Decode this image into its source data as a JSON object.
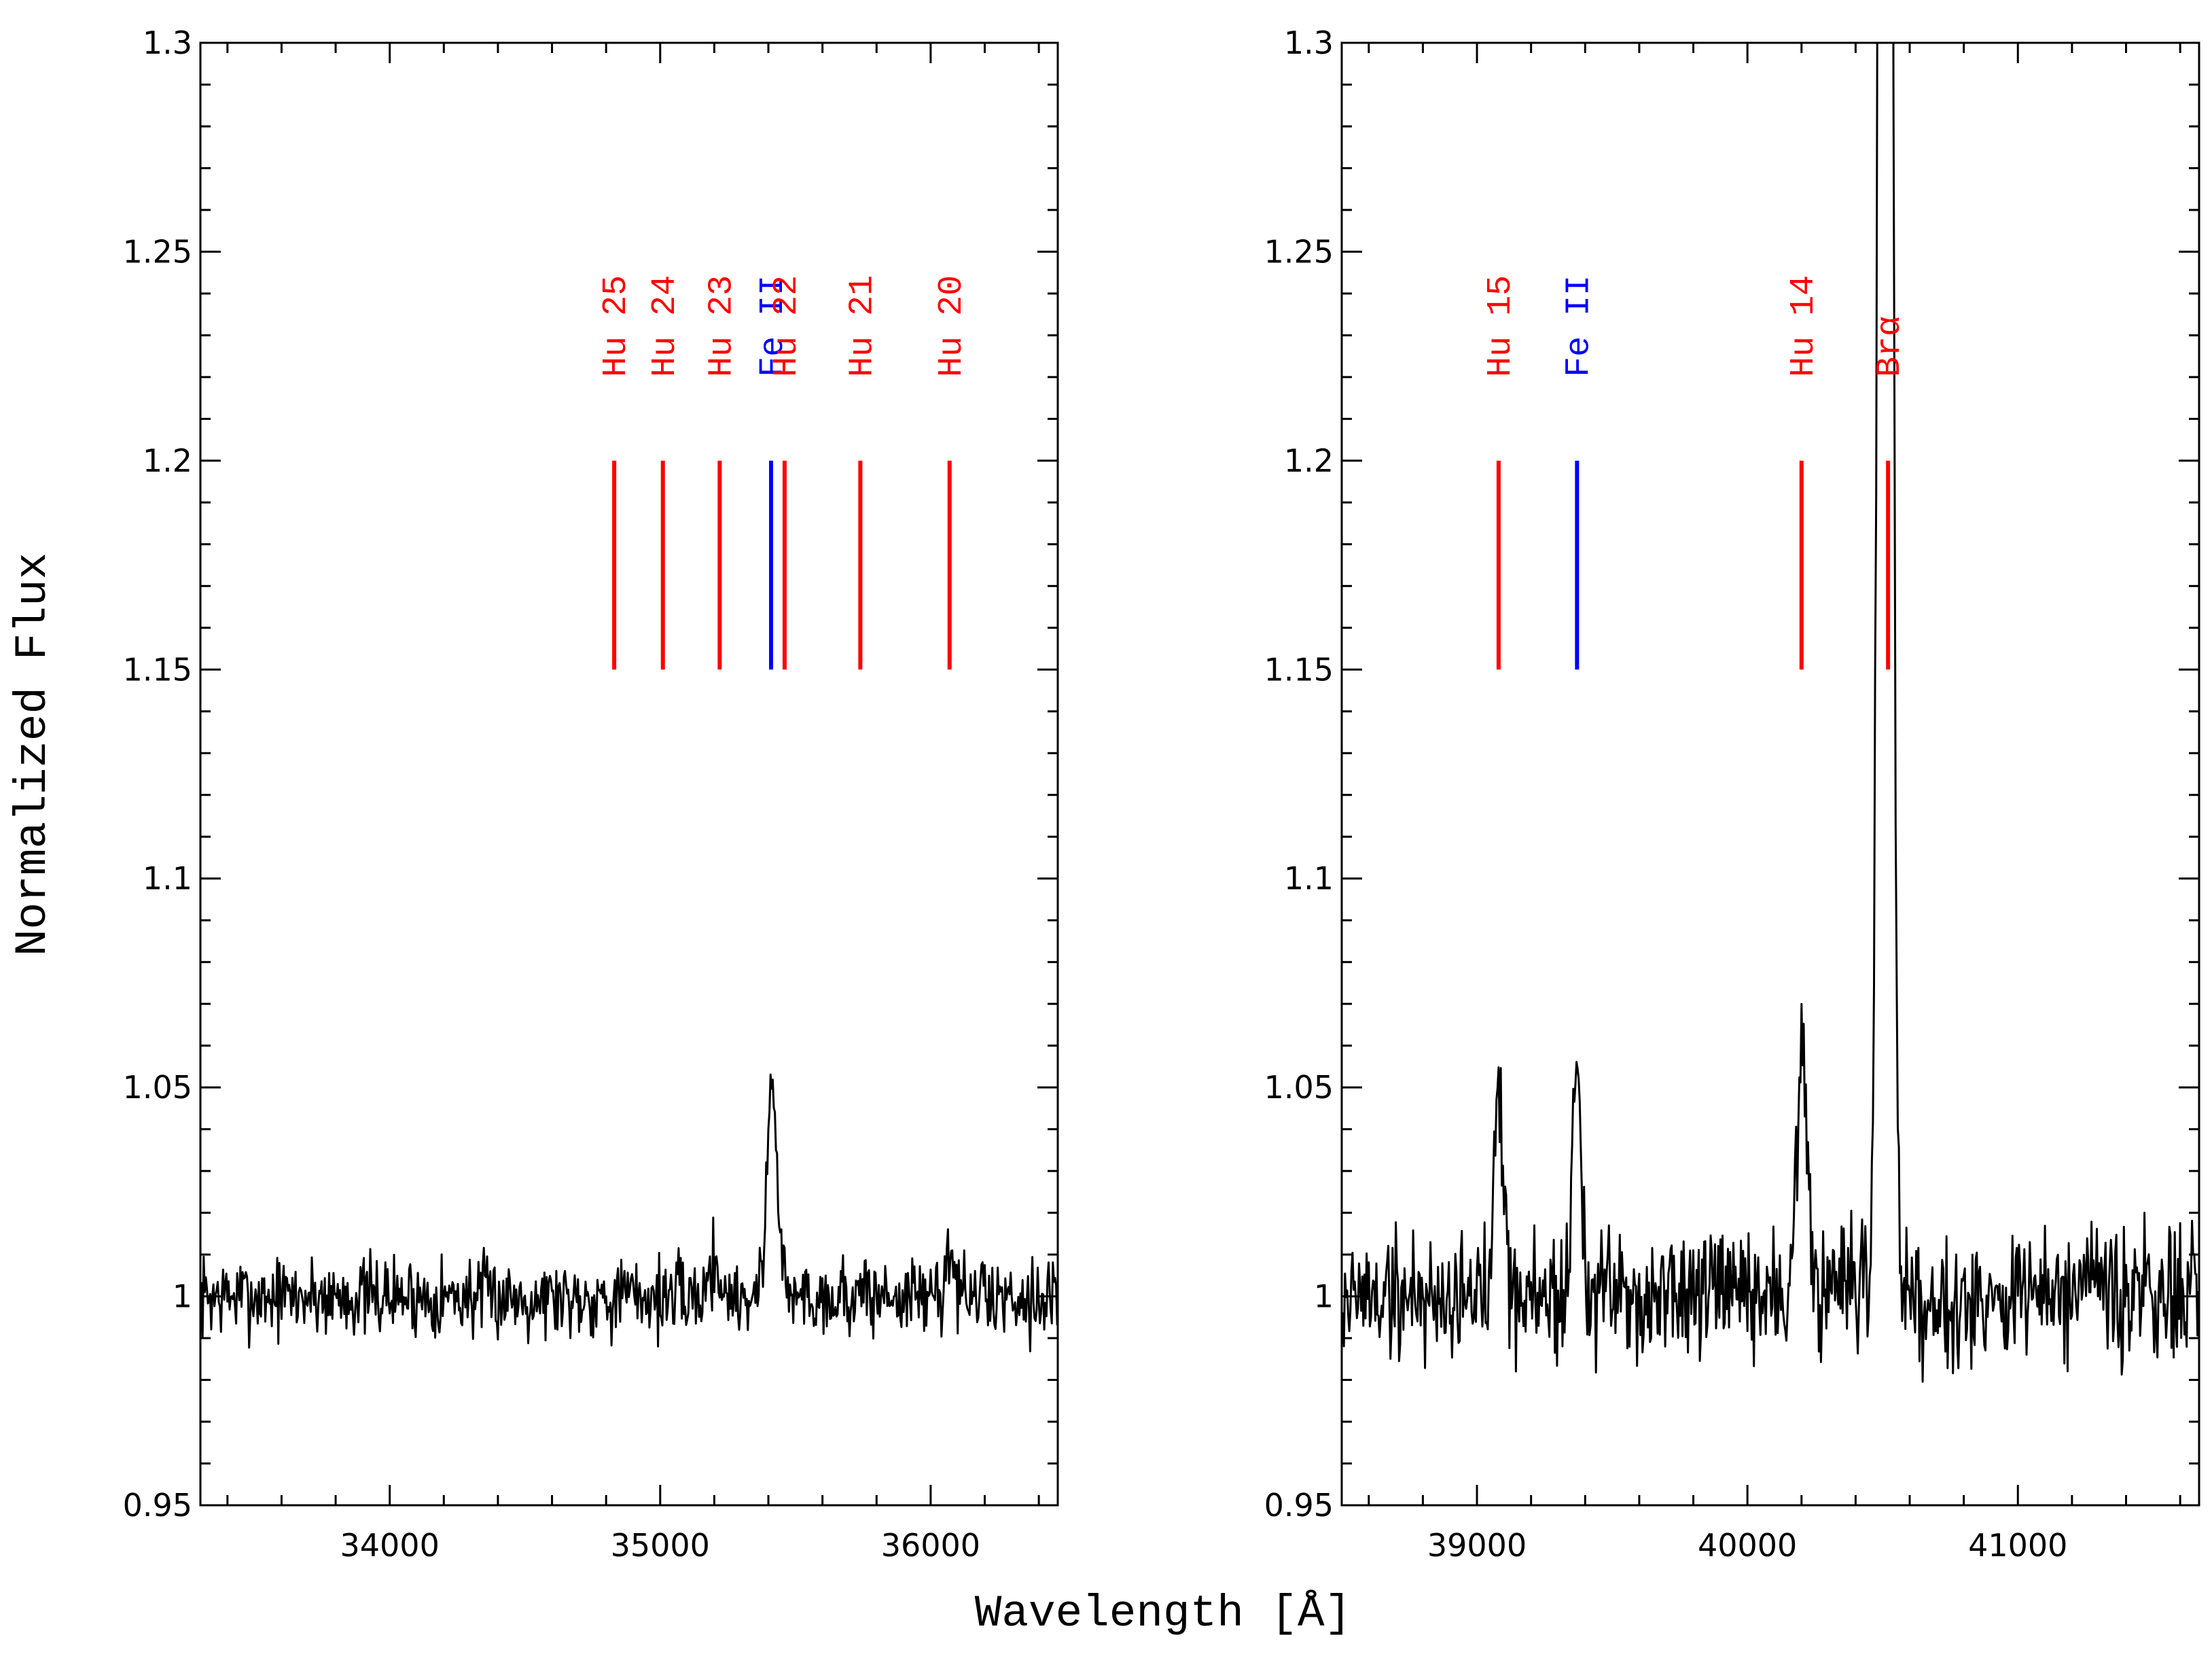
{
  "figure": {
    "xlabel": "Wavelength [Å]",
    "ylabel": "Normalized Flux"
  },
  "chart_data": [
    {
      "type": "line",
      "panel": "left",
      "xlim": [
        33300,
        36470
      ],
      "ylim": [
        0.95,
        1.3
      ],
      "x_ticks": [
        34000,
        35000,
        36000
      ],
      "x_tick_labels": [
        "34000",
        "35000",
        "36000"
      ],
      "y_ticks": [
        0.95,
        1.0,
        1.05,
        1.1,
        1.15,
        1.2,
        1.25,
        1.3
      ],
      "y_tick_labels": [
        "0.95",
        "1",
        "1.05",
        "1.1",
        "1.15",
        "1.2",
        "1.25",
        "1.3"
      ],
      "series": [
        {
          "name": "spectrum",
          "continuum": 1.0,
          "noise": 0.006,
          "peaks": [
            {
              "center": 35415,
              "amplitude": 0.05,
              "width": 20
            },
            {
              "center": 36070,
              "amplitude": 0.012,
              "width": 15
            },
            {
              "center": 35200,
              "amplitude": 0.008,
              "width": 20
            }
          ]
        }
      ],
      "markers": [
        {
          "label": "Hu 25",
          "wavelength": 34830,
          "y0": 1.15,
          "y1": 1.2,
          "color": "#ff0000"
        },
        {
          "label": "Hu 24",
          "wavelength": 35010,
          "y0": 1.15,
          "y1": 1.2,
          "color": "#ff0000"
        },
        {
          "label": "Hu 23",
          "wavelength": 35220,
          "y0": 1.15,
          "y1": 1.2,
          "color": "#ff0000"
        },
        {
          "label": "Fe II",
          "wavelength": 35410,
          "y0": 1.15,
          "y1": 1.2,
          "color": "#0000ff"
        },
        {
          "label": "Hu 22",
          "wavelength": 35460,
          "y0": 1.15,
          "y1": 1.2,
          "color": "#ff0000"
        },
        {
          "label": "Hu 21",
          "wavelength": 35740,
          "y0": 1.15,
          "y1": 1.2,
          "color": "#ff0000"
        },
        {
          "label": "Hu 20",
          "wavelength": 36070,
          "y0": 1.15,
          "y1": 1.2,
          "color": "#ff0000"
        }
      ]
    },
    {
      "type": "line",
      "panel": "right",
      "xlim": [
        38500,
        41670
      ],
      "ylim": [
        0.95,
        1.3
      ],
      "x_ticks": [
        39000,
        40000,
        41000
      ],
      "x_tick_labels": [
        "39000",
        "40000",
        "41000"
      ],
      "y_ticks": [
        0.95,
        1.0,
        1.05,
        1.1,
        1.15,
        1.2,
        1.25,
        1.3
      ],
      "y_tick_labels": [
        "0.95",
        "1",
        "1.05",
        "1.1",
        "1.15",
        "1.2",
        "1.25",
        "1.3"
      ],
      "series": [
        {
          "name": "spectrum",
          "continuum": 1.0,
          "noise": 0.01,
          "peaks": [
            {
              "center": 40510,
              "amplitude": 1.2,
              "width": 18
            },
            {
              "center": 39080,
              "amplitude": 0.055,
              "width": 18
            },
            {
              "center": 39370,
              "amplitude": 0.06,
              "width": 15
            },
            {
              "center": 40200,
              "amplitude": 0.055,
              "width": 20
            }
          ]
        }
      ],
      "markers": [
        {
          "label": "Hu 15",
          "wavelength": 39080,
          "y0": 1.15,
          "y1": 1.2,
          "color": "#ff0000"
        },
        {
          "label": "Fe II",
          "wavelength": 39370,
          "y0": 1.15,
          "y1": 1.2,
          "color": "#0000ff"
        },
        {
          "label": "Hu 14",
          "wavelength": 40200,
          "y0": 1.15,
          "y1": 1.2,
          "color": "#ff0000"
        },
        {
          "label": "Brα",
          "wavelength": 40520,
          "y0": 1.15,
          "y1": 1.2,
          "color": "#ff0000"
        }
      ]
    }
  ]
}
